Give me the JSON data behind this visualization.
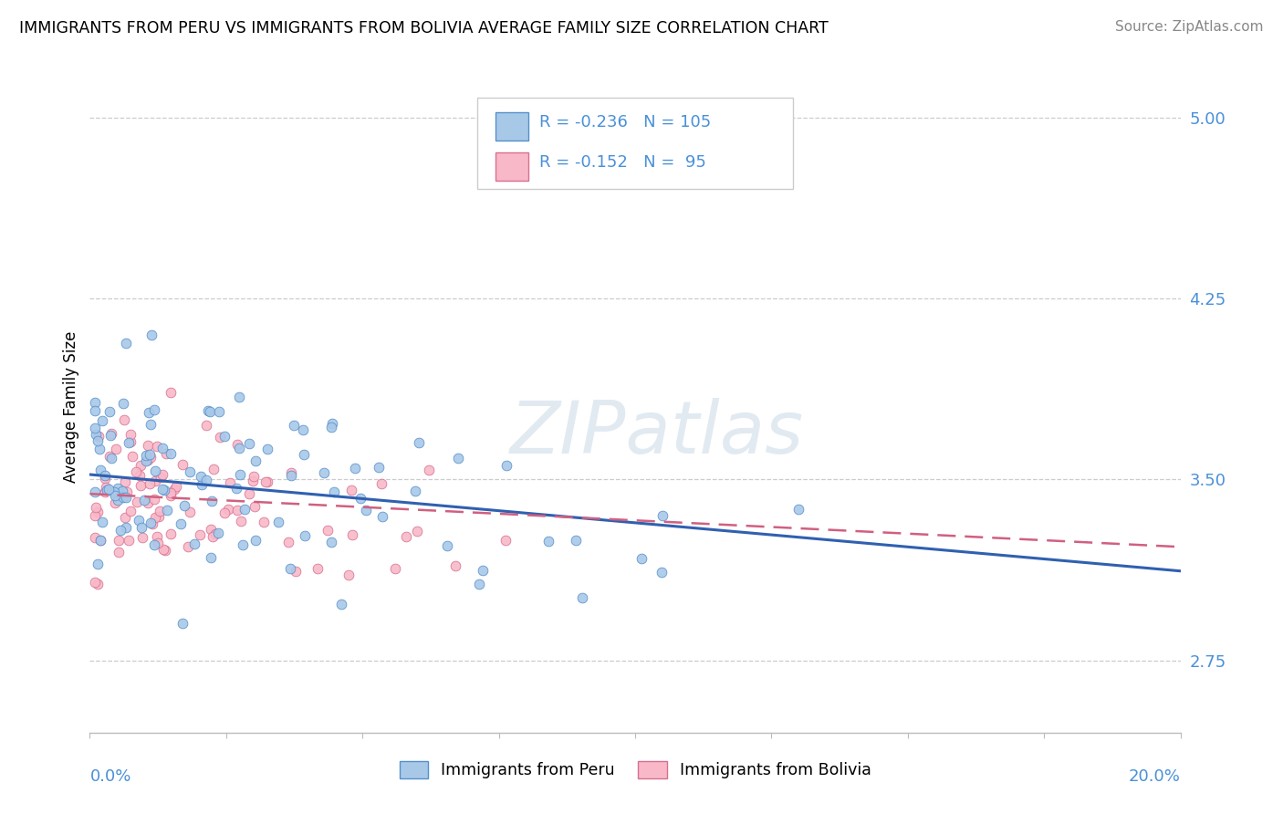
{
  "title": "IMMIGRANTS FROM PERU VS IMMIGRANTS FROM BOLIVIA AVERAGE FAMILY SIZE CORRELATION CHART",
  "source": "Source: ZipAtlas.com",
  "ylabel": "Average Family Size",
  "xlim": [
    0.0,
    0.2
  ],
  "ylim": [
    2.45,
    5.15
  ],
  "yticks": [
    2.75,
    3.5,
    4.25,
    5.0
  ],
  "color_peru_fill": "#a8c8e8",
  "color_peru_edge": "#5590cc",
  "color_bolivia_fill": "#f8b8c8",
  "color_bolivia_edge": "#d87090",
  "color_peru_line": "#3060b0",
  "color_bolivia_line": "#d06080",
  "color_axis_label": "#4a90d9",
  "title_fontsize": 12.5,
  "source_fontsize": 11,
  "R_peru": -0.236,
  "N_peru": 105,
  "R_bolivia": -0.152,
  "N_bolivia": 95,
  "watermark": "ZIPatlas",
  "legend_label_peru": "Immigrants from Peru",
  "legend_label_bolivia": "Immigrants from Bolivia",
  "seed_peru": 42,
  "seed_bolivia": 7
}
